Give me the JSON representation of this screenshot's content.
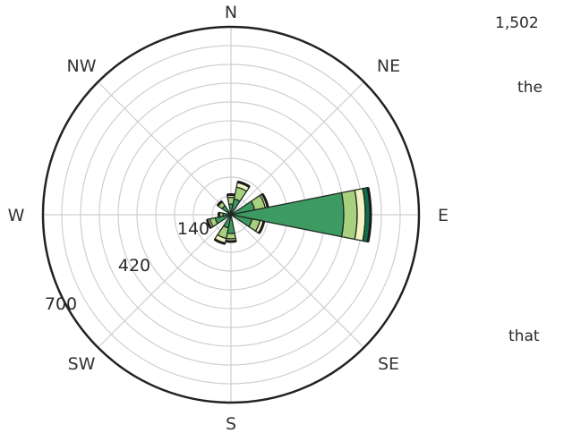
{
  "side_text": {
    "t1": "1,502",
    "t2": "the",
    "t3": "that"
  },
  "chart_data": {
    "type": "polar-stacked-bar",
    "title": "",
    "directions": [
      "N",
      "NE",
      "E",
      "SE",
      "S",
      "SW",
      "W",
      "NW"
    ],
    "radial_tick_labels": [
      "140",
      "420",
      "700"
    ],
    "radial_max": 700,
    "grid": true,
    "bins": [
      {
        "dir": "N",
        "angle": 0,
        "values": [
          40,
          25,
          10
        ]
      },
      {
        "dir": "NNE",
        "angle": 22.5,
        "values": [
          60,
          45,
          20
        ]
      },
      {
        "dir": "ENE",
        "angle": 67.5,
        "values": [
          90,
          40,
          10
        ]
      },
      {
        "dir": "E",
        "angle": 90,
        "values": [
          420,
          50,
          30,
          20
        ]
      },
      {
        "dir": "ESE",
        "angle": 112.5,
        "values": [
          80,
          30,
          15
        ]
      },
      {
        "dir": "S",
        "angle": 180,
        "values": [
          70,
          20,
          10
        ]
      },
      {
        "dir": "SSW",
        "angle": 202.5,
        "values": [
          50,
          40,
          20
        ]
      },
      {
        "dir": "WSW",
        "angle": 247.5,
        "values": [
          60,
          20,
          10
        ]
      },
      {
        "dir": "W",
        "angle": 270,
        "values": [
          30,
          15
        ]
      },
      {
        "dir": "NW",
        "angle": 315,
        "values": [
          40,
          20
        ]
      }
    ],
    "series_colors": [
      "#3e9a63",
      "#a7d07f",
      "#f3f3c3",
      "#0f6d4e"
    ]
  }
}
